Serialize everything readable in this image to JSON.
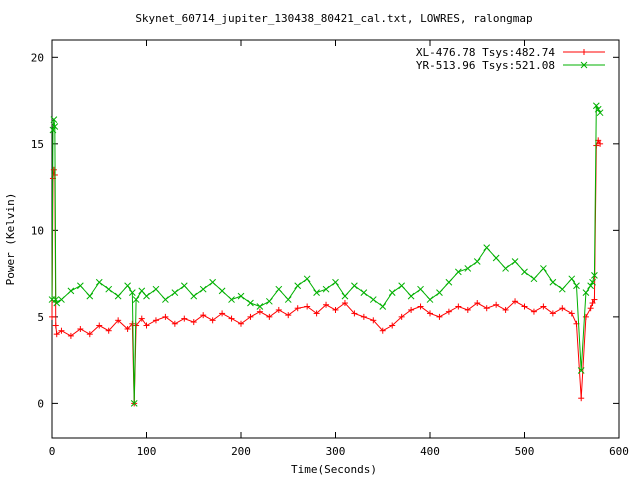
{
  "chart_data": {
    "type": "scatter",
    "title": "Skynet_60714_jupiter_130438_80421_cal.txt, LOWRES, ralongmap",
    "xlabel": "Time(Seconds)",
    "ylabel": "Power (Kelvin)",
    "xlim": [
      0,
      600
    ],
    "ylim": [
      -2,
      21
    ],
    "xticks": [
      0,
      100,
      200,
      300,
      400,
      500,
      600
    ],
    "yticks": [
      0,
      5,
      10,
      15,
      20
    ],
    "grid": false,
    "legend_position": "top-right",
    "series": [
      {
        "name": "XL-476.78 Tsys:482.74",
        "color": "#ff0000",
        "marker": "plus",
        "x": [
          0,
          1,
          2,
          3,
          4,
          5,
          10,
          20,
          30,
          40,
          50,
          60,
          70,
          80,
          85,
          87,
          89,
          95,
          100,
          110,
          120,
          130,
          140,
          150,
          160,
          170,
          180,
          190,
          200,
          210,
          220,
          230,
          240,
          250,
          260,
          270,
          280,
          290,
          300,
          310,
          320,
          330,
          340,
          350,
          360,
          370,
          380,
          390,
          400,
          410,
          420,
          430,
          440,
          450,
          460,
          470,
          480,
          490,
          500,
          510,
          520,
          530,
          540,
          550,
          555,
          560,
          565,
          570,
          572,
          574,
          576,
          578,
          580
        ],
        "values": [
          5.0,
          13.0,
          13.5,
          13.2,
          4.5,
          4.0,
          4.2,
          3.9,
          4.3,
          4.0,
          4.5,
          4.2,
          4.8,
          4.3,
          4.6,
          0.0,
          4.5,
          4.9,
          4.5,
          4.8,
          5.0,
          4.6,
          4.9,
          4.7,
          5.1,
          4.8,
          5.2,
          4.9,
          4.6,
          5.0,
          5.3,
          5.0,
          5.4,
          5.1,
          5.5,
          5.6,
          5.2,
          5.7,
          5.4,
          5.8,
          5.2,
          5.0,
          4.8,
          4.2,
          4.5,
          5.0,
          5.4,
          5.6,
          5.2,
          5.0,
          5.3,
          5.6,
          5.4,
          5.8,
          5.5,
          5.7,
          5.4,
          5.9,
          5.6,
          5.3,
          5.6,
          5.2,
          5.5,
          5.2,
          4.6,
          0.3,
          5.0,
          5.5,
          5.8,
          6.0,
          14.9,
          15.2,
          15.0
        ]
      },
      {
        "name": "YR-513.96 Tsys:521.08",
        "color": "#00b000",
        "marker": "cross",
        "x": [
          0,
          1,
          2,
          3,
          4,
          5,
          10,
          20,
          30,
          40,
          50,
          60,
          70,
          80,
          85,
          87,
          89,
          95,
          100,
          110,
          120,
          130,
          140,
          150,
          160,
          170,
          180,
          190,
          200,
          210,
          220,
          230,
          240,
          250,
          260,
          270,
          280,
          290,
          300,
          310,
          320,
          330,
          340,
          350,
          360,
          370,
          380,
          390,
          400,
          410,
          420,
          430,
          440,
          450,
          460,
          470,
          480,
          490,
          500,
          510,
          520,
          530,
          540,
          550,
          555,
          560,
          565,
          570,
          572,
          574,
          576,
          578,
          580
        ],
        "values": [
          6.0,
          15.8,
          16.4,
          16.0,
          6.0,
          5.8,
          6.0,
          6.5,
          6.8,
          6.2,
          7.0,
          6.6,
          6.2,
          6.8,
          6.4,
          0.0,
          6.0,
          6.5,
          6.2,
          6.6,
          6.0,
          6.4,
          6.8,
          6.2,
          6.6,
          7.0,
          6.5,
          6.0,
          6.2,
          5.8,
          5.6,
          5.9,
          6.6,
          6.0,
          6.8,
          7.2,
          6.4,
          6.6,
          7.0,
          6.2,
          6.8,
          6.4,
          6.0,
          5.6,
          6.4,
          6.8,
          6.2,
          6.6,
          6.0,
          6.4,
          7.0,
          7.6,
          7.8,
          8.2,
          9.0,
          8.4,
          7.8,
          8.2,
          7.6,
          7.2,
          7.8,
          7.0,
          6.6,
          7.2,
          6.8,
          1.9,
          6.4,
          6.8,
          7.0,
          7.4,
          17.2,
          17.0,
          16.8
        ]
      }
    ]
  }
}
